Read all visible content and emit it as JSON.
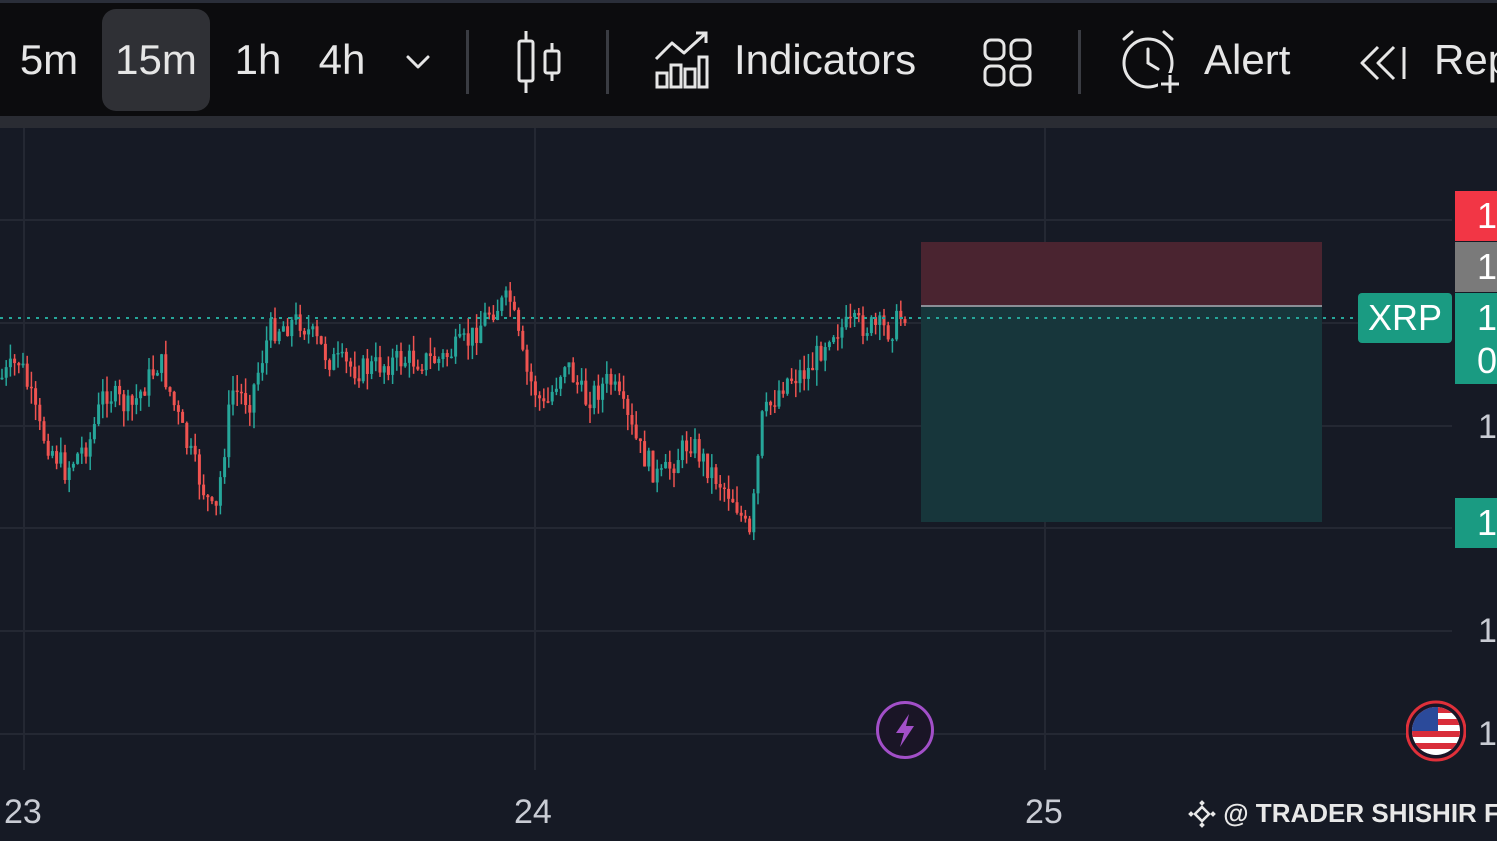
{
  "toolbar": {
    "timeframes": [
      {
        "label": "5m",
        "active": false
      },
      {
        "label": "15m",
        "active": true
      },
      {
        "label": "1h",
        "active": false
      },
      {
        "label": "4h",
        "active": false
      }
    ],
    "more_timeframes_icon": "chevron-down-icon",
    "chart_type_icon": "candlestick-icon",
    "indicators_label": "Indicators",
    "layouts_icon": "grid-icon",
    "alert_label": "Alert",
    "replay_label": "Rep"
  },
  "chart": {
    "symbol_badge": "XRP",
    "price_tags": [
      {
        "text": "1",
        "color": "#f23645"
      },
      {
        "text": "1",
        "color": "#7a7a7a"
      },
      {
        "text": "1",
        "color": "#1a9b82"
      },
      {
        "text": "0",
        "color": "#1a9b82"
      },
      {
        "text": "1",
        "color": "#1a9b82"
      }
    ],
    "axis_labels": [
      "1",
      "1",
      "1"
    ],
    "date_labels": [
      "23",
      "24",
      "25"
    ],
    "watermark": "@ TRADER SHISHIR FCS",
    "colors": {
      "background": "#161a25",
      "up": "#26a69a",
      "down": "#ef5350",
      "stop_zone": "#4a2430",
      "target_zone": "#17363b"
    }
  }
}
